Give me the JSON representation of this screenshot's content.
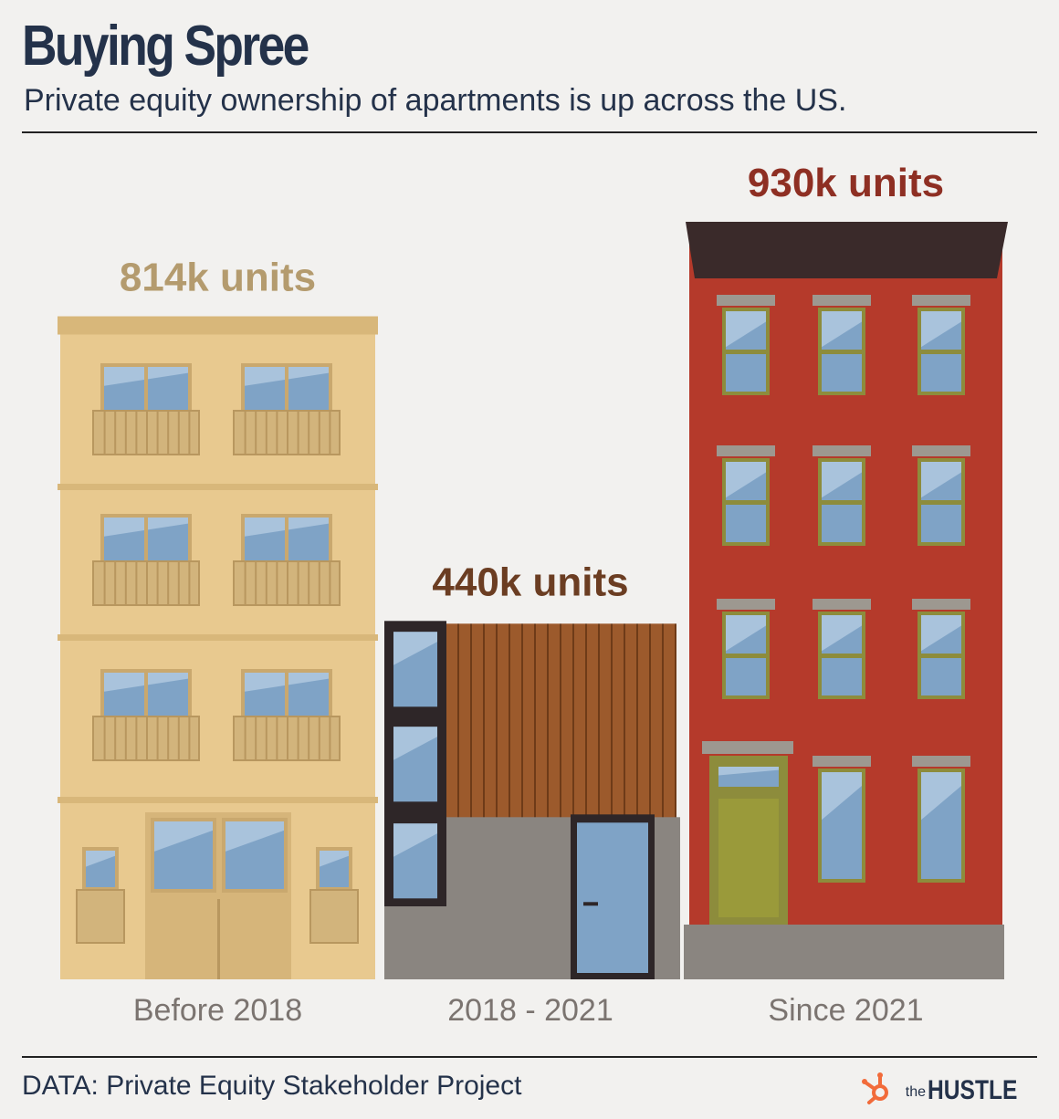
{
  "title": "Buying Spree",
  "subtitle": "Private equity ownership of apartments is up across the US.",
  "source": "DATA: Private Equity Stakeholder Project",
  "brand": {
    "prefix": "the",
    "name": "HUSTLE",
    "icon": "hubspot-sprocket-icon",
    "icon_color": "#f26b3a"
  },
  "colors": {
    "title": "#24324a",
    "before_2018": "#e8c98f",
    "y2018_2021": "#9c5a2c",
    "since_2021": "#b53a2b",
    "label_before_2018": "#b49b6e",
    "label_2018_2021": "#6b3d22",
    "label_since_2021": "#8e2f23",
    "category_text": "#7b7470"
  },
  "chart_data": {
    "type": "bar",
    "categories": [
      "Before 2018",
      "2018 - 2021",
      "Since 2021"
    ],
    "values": [
      814,
      440,
      930
    ],
    "value_labels": [
      "814k units",
      "440k units",
      "930k units"
    ],
    "unit": "units",
    "title": "Buying Spree",
    "subtitle": "Private equity ownership of apartments is up across the US.",
    "ylim": [
      0,
      930
    ],
    "grid": false,
    "legend": "none"
  }
}
